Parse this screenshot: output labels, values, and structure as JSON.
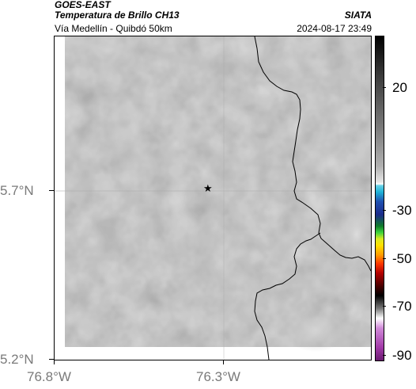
{
  "header": {
    "agency": "GOES-EAST",
    "product": "Temperatura de Brillo CH13",
    "organization": "SIATA",
    "region": "Vía Medellín - Quibdó 50km",
    "timestamp": "2024-08-17 23:49"
  },
  "map": {
    "lat_ticks": [
      "5.7°N",
      "5.2°N"
    ],
    "lon_ticks": [
      "76.8°W",
      "76.3°W"
    ],
    "marker_icon": "star-icon",
    "background_color": "#8a8a8a",
    "border_color": "#000000"
  },
  "colorbar": {
    "tick_labels": [
      "20",
      "-30",
      "-50",
      "-70",
      "-90"
    ]
  }
}
